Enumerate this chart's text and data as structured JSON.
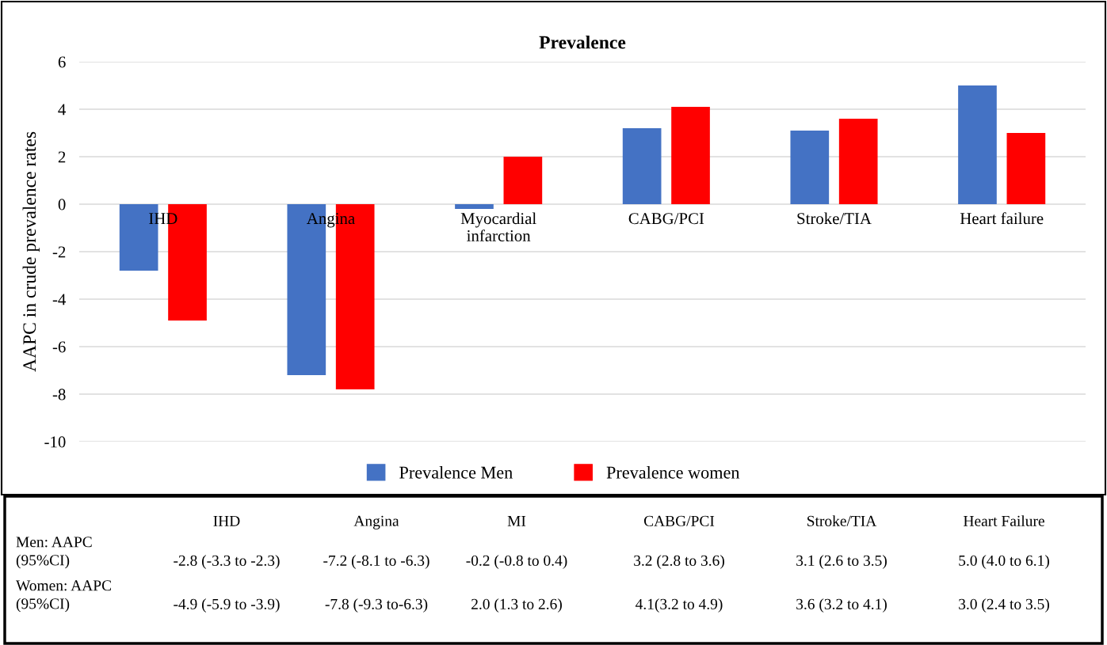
{
  "chart_data": {
    "type": "bar",
    "title": "Prevalence",
    "ylabel": "AAPC in crude prevalence rates",
    "categories": [
      "IHD",
      "Angina",
      "Myocardial\ninfarction",
      "CABG/PCI",
      "Stroke/TIA",
      "Heart failure"
    ],
    "series": [
      {
        "name": "Prevalence Men",
        "color": "#4472c4",
        "values": [
          -2.8,
          -7.2,
          -0.2,
          3.2,
          3.1,
          5.0
        ]
      },
      {
        "name": "Prevalence women",
        "color": "#ff0000",
        "values": [
          -4.9,
          -7.8,
          2.0,
          4.1,
          3.6,
          3.0
        ]
      }
    ],
    "ylim": [
      -10,
      6
    ],
    "yticks": [
      -10,
      -8,
      -6,
      -4,
      -2,
      0,
      2,
      4,
      6
    ],
    "grid": "y",
    "legend": "bottom",
    "annotations": [
      "IHD",
      "Angina",
      "MI",
      "CABG/PCI",
      "Stroke/TIA",
      "Heart Failure",
      "Men: AAPC\n(95%CI)",
      "-2.8 (-3.3 to -2.3)",
      "-7.2 (-8.1 to -6.3)",
      "-0.2 (-0.8 to 0.4)",
      "3.2 (2.8 to 3.6)",
      "3.1 (2.6 to 3.5)",
      "5.0 (4.0 to 6.1)",
      "Women: AAPC\n(95%CI)",
      "-4.9 (-5.9 to -3.9)",
      "-7.8 (-9.3 to-6.3)",
      "2.0 (1.3 to 2.6)",
      "4.1(3.2 to 4.9)",
      "3.6 (3.2 to 4.1)",
      "3.0 (2.4 to 3.5)"
    ]
  }
}
